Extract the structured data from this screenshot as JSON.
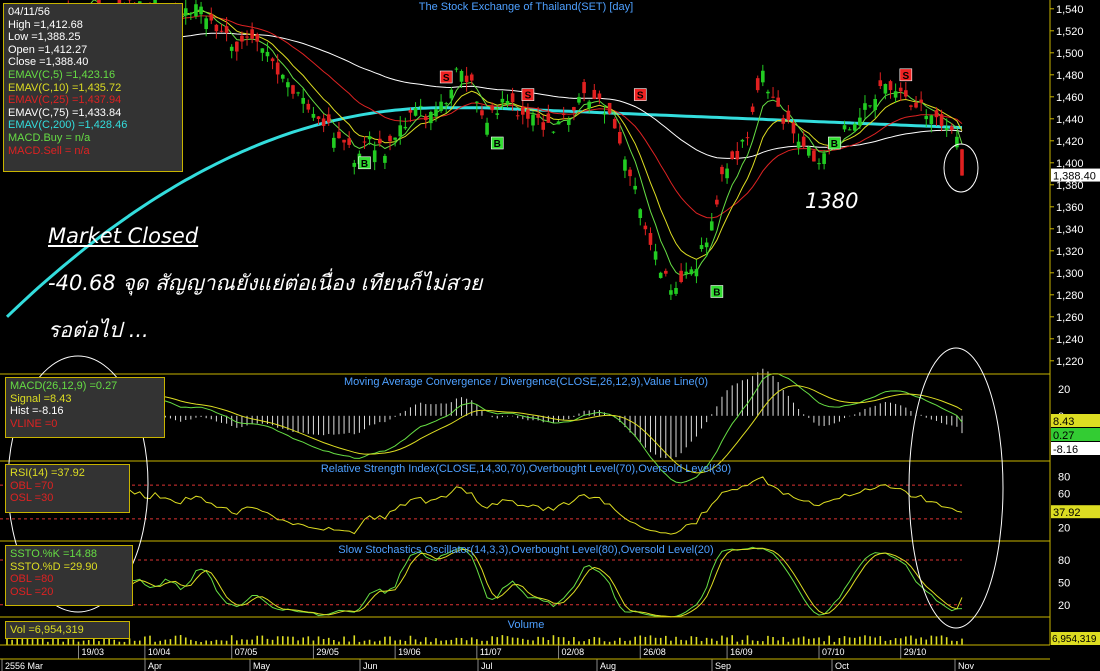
{
  "titles": {
    "price": "The Stock Exchange of Thailand(SET) [day]",
    "macd": "Moving Average Convergence / Divergence(CLOSE,26,12,9),Value Line(0)",
    "rsi": "Relative Strength Index(CLOSE,14,30,70),Overbought Level(70),Oversold Level(30)",
    "stoch": "Slow Stochastics Oscillator(14,3,3),Overbought Level(80),Oversold Level(20)",
    "volume": "Volume"
  },
  "price_info": {
    "date": "04/11/56",
    "high": "High  =1,412.68",
    "low": "Low  =1,388.25",
    "open": "Open  =1,412.27",
    "close": "Close  =1,388.40",
    "ema5": "EMAV(C,5)   =1,423.16",
    "ema10": "EMAV(C,10)   =1,435.72",
    "ema25": "EMAV(C,25)   =1,437.94",
    "ema75": "EMAV(C,75)   =1,433.84",
    "ema200": "EMAV(C,200)   =1,428.46",
    "macd_buy": "MACD.Buy  = n/a",
    "macd_sell": "MACD.Sell  = n/a"
  },
  "macd_info": {
    "macd": "MACD(26,12,9)  =0.27",
    "signal": "Signal  =8.43",
    "hist": "Hist  =-8.16",
    "vline": "VLINE   =0"
  },
  "rsi_info": {
    "rsi": "RSI(14)   =37.92",
    "obl": "OBL   =70",
    "osl": "OSL   =30"
  },
  "stoch_info": {
    "k": "SSTO.%K   =14.88",
    "d": "SSTO.%D   =29.90",
    "obl": "OBL   =80",
    "osl": "OSL   =20"
  },
  "vol_info": {
    "vol": "Vol   =6,954,319"
  },
  "annotation": {
    "headline": "Market Closed",
    "line1": "-40.68 จุด สัญญาณยังแย่ต่อเนื่อง เทียนก็ไม่สวย",
    "line2": "รอต่อไป ...",
    "support_label": "1380"
  },
  "colors": {
    "background": "#000000",
    "up": "#22cc22",
    "down": "#e02020",
    "ema5": "#66dd44",
    "ema10": "#dddd22",
    "ema25": "#dd2222",
    "ema75": "#ffffff",
    "ema200": "#33dddd",
    "panel_border": "#c8b400",
    "axis_text": "#ffffff",
    "buy_signal": "#33dd33",
    "sell_signal": "#ee2222"
  },
  "chart_data": {
    "type": "candlestick",
    "price_axis_ticks": [
      1540,
      1520,
      1500,
      1480,
      1460,
      1440,
      1420,
      1400,
      1380,
      1360,
      1340,
      1320,
      1300,
      1280,
      1260,
      1240,
      1220
    ],
    "price_range": [
      1208,
      1548
    ],
    "last_close_label": "1,388.40",
    "date_labels": [
      "19/03",
      "10/04",
      "07/05",
      "29/05",
      "19/06",
      "11/07",
      "02/08",
      "26/08",
      "16/09",
      "07/10",
      "29/10"
    ],
    "month_labels": [
      "2556 Mar",
      "Apr",
      "May",
      "Jun",
      "Jul",
      "Aug",
      "Sep",
      "Oct",
      "Nov"
    ],
    "close_path": [
      [
        0,
        1470
      ],
      [
        4,
        1500
      ],
      [
        9,
        1520
      ],
      [
        13,
        1535
      ],
      [
        17,
        1560
      ],
      [
        20,
        1520
      ],
      [
        24,
        1550
      ],
      [
        27,
        1535
      ],
      [
        29,
        1545
      ],
      [
        33,
        1525
      ],
      [
        37,
        1545
      ],
      [
        40,
        1530
      ],
      [
        45,
        1505
      ],
      [
        48,
        1515
      ],
      [
        52,
        1490
      ],
      [
        55,
        1470
      ],
      [
        59,
        1448
      ],
      [
        62,
        1440
      ],
      [
        65,
        1420
      ],
      [
        68,
        1405
      ],
      [
        71,
        1420
      ],
      [
        74,
        1410
      ],
      [
        77,
        1430
      ],
      [
        80,
        1455
      ],
      [
        83,
        1440
      ],
      [
        86,
        1460
      ],
      [
        89,
        1490
      ],
      [
        91,
        1470
      ],
      [
        94,
        1440
      ],
      [
        97,
        1455
      ],
      [
        100,
        1445
      ],
      [
        103,
        1438
      ],
      [
        106,
        1430
      ],
      [
        109,
        1440
      ],
      [
        112,
        1455
      ],
      [
        115,
        1460
      ],
      [
        118,
        1438
      ],
      [
        121,
        1400
      ],
      [
        124,
        1360
      ],
      [
        127,
        1318
      ],
      [
        130,
        1280
      ],
      [
        132,
        1295
      ],
      [
        135,
        1310
      ],
      [
        138,
        1345
      ],
      [
        140,
        1385
      ],
      [
        143,
        1410
      ],
      [
        146,
        1440
      ],
      [
        148,
        1480
      ],
      [
        150,
        1460
      ],
      [
        152,
        1440
      ],
      [
        155,
        1420
      ],
      [
        158,
        1405
      ],
      [
        161,
        1410
      ],
      [
        164,
        1430
      ],
      [
        167,
        1445
      ],
      [
        170,
        1460
      ],
      [
        173,
        1470
      ],
      [
        176,
        1455
      ],
      [
        179,
        1450
      ],
      [
        182,
        1440
      ],
      [
        185,
        1430
      ],
      [
        186,
        1418
      ],
      [
        187,
        1388
      ]
    ],
    "candle_count": 188,
    "ema_values_last": {
      "EMAV(C,5)": 1423.16,
      "EMAV(C,10)": 1435.72,
      "EMAV(C,25)": 1437.94,
      "EMAV(C,75)": 1433.84,
      "EMAV(C,200)": 1428.46
    },
    "signals": [
      {
        "type": "B",
        "index": 7,
        "price": 1492
      },
      {
        "type": "B",
        "index": 70,
        "price": 1400
      },
      {
        "type": "S",
        "index": 86,
        "price": 1478
      },
      {
        "type": "S",
        "index": 102,
        "price": 1462
      },
      {
        "type": "B",
        "index": 96,
        "price": 1418
      },
      {
        "type": "S",
        "index": 124,
        "price": 1462
      },
      {
        "type": "B",
        "index": 139,
        "price": 1283
      },
      {
        "type": "B",
        "index": 162,
        "price": 1418
      },
      {
        "type": "S",
        "index": 176,
        "price": 1480
      }
    ],
    "macd": {
      "ticks": [
        20,
        0
      ],
      "range": [
        -32,
        28
      ],
      "macd": 0.27,
      "signal": 8.43,
      "hist": -8.16
    },
    "rsi": {
      "ticks": [
        80,
        60,
        40,
        20
      ],
      "range": [
        5,
        95
      ],
      "value": 37.92,
      "overbought": 70,
      "oversold": 30
    },
    "stoch": {
      "ticks": [
        80,
        50,
        20
      ],
      "range": [
        5,
        100
      ],
      "k": 14.88,
      "d": 29.9,
      "overbought": 80,
      "oversold": 20
    },
    "volume": {
      "last": "6,954,319"
    }
  }
}
